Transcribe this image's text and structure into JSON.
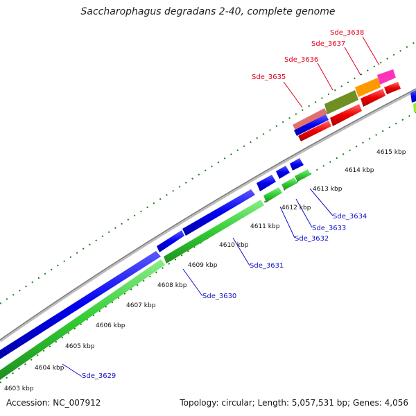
{
  "header": {
    "title": "Saccharophagus degradans 2-40, complete genome"
  },
  "footer": {
    "accession": "Accession: NC_007912",
    "summary": "Topology: circular; Length: 5,057,531 bp; Genes: 4,056"
  },
  "colors": {
    "backbone": "#8c8c8c",
    "blue_feature": "#0000ee",
    "green_feature": "#33cc33",
    "red_feature": "#ee0000",
    "olive_feature": "#6f8f22",
    "orange_feature": "#ff9900",
    "magenta_feature": "#ff33bb",
    "pink_feature": "#e07070",
    "tick": "#1a7a1a",
    "label_red": "#e0001b",
    "label_blue": "#1010c8"
  },
  "ticks": [
    "4603 kbp",
    "4604 kbp",
    "4605 kbp",
    "4606 kbp",
    "4607 kbp",
    "4608 kbp",
    "4609 kbp",
    "4610 kbp",
    "4611 kbp",
    "4612 kbp",
    "4613 kbp",
    "4614 kbp",
    "4615 kbp"
  ],
  "labels_top": [
    "Sde_3635",
    "Sde_3636",
    "Sde_3637",
    "Sde_3638"
  ],
  "labels_bottom": [
    "Sde_3629",
    "Sde_3630",
    "Sde_3631",
    "Sde_3632",
    "Sde_3633",
    "Sde_3634"
  ]
}
